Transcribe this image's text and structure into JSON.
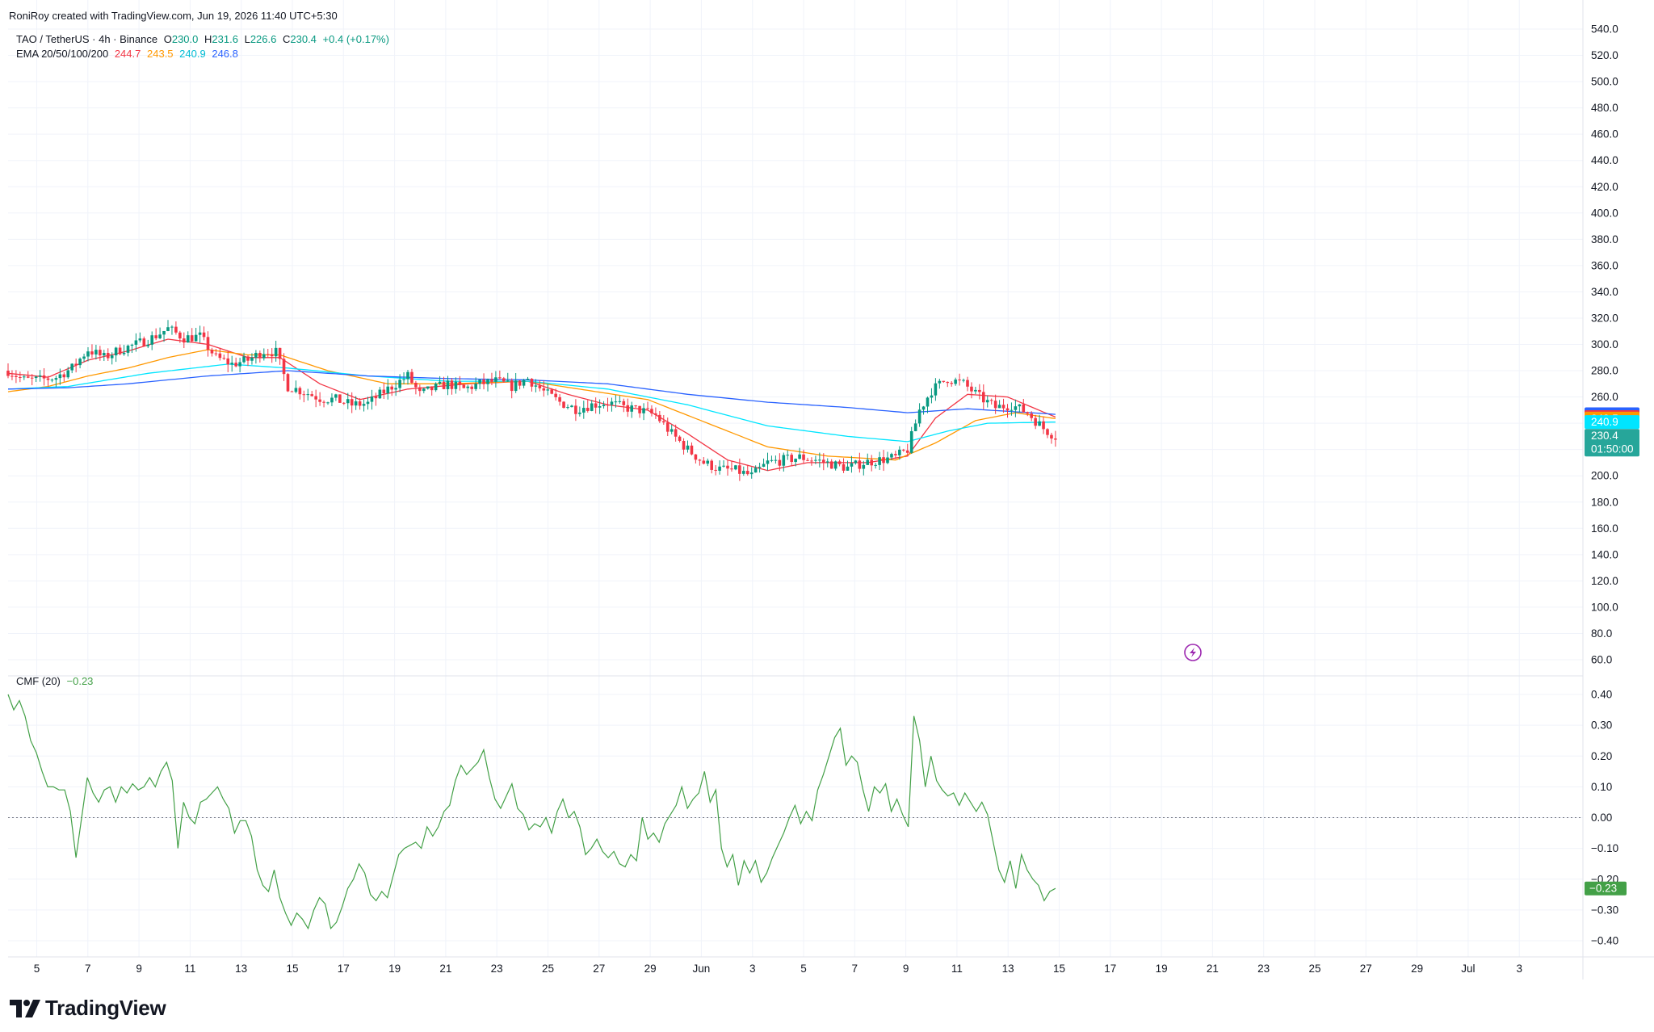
{
  "credit": "RoniRoy created with TradingView.com, Jun 19, 2026 11:40 UTC+5:30",
  "symbol_legend": {
    "name": "TAO / TetherUS · 4h · Binance",
    "open_label": "O",
    "open": "230.0",
    "high_label": "H",
    "high": "231.6",
    "low_label": "L",
    "low": "226.6",
    "close_label": "C",
    "close": "230.4",
    "change": "+0.4 (+0.17%)"
  },
  "ema_legend": {
    "name": "EMA 20/50/100/200",
    "ema20": "244.7",
    "ema50": "243.5",
    "ema100": "240.9",
    "ema200": "246.8"
  },
  "cmf_legend": {
    "name": "CMF (20)",
    "value": "−0.23"
  },
  "brand": "TradingView",
  "colors": {
    "up": "#089981",
    "down": "#f23645",
    "ema20": "#f23645",
    "ema50": "#ff9800",
    "ema100": "#00e5ff",
    "ema200": "#2962ff",
    "cmf": "#43a047",
    "grid": "#f0f3fa",
    "axis_text": "#131722"
  },
  "icons": {
    "brand_logo": "tradingview-logo-icon",
    "flash_marker": "lightning-bolt-icon"
  },
  "chart_data": [
    {
      "type": "candlestick",
      "title": "TAO / TetherUS · 4h · Binance",
      "x_ticks": [
        "5",
        "7",
        "9",
        "11",
        "13",
        "15",
        "17",
        "19",
        "21",
        "23",
        "25",
        "27",
        "29",
        "Jun",
        "3",
        "5",
        "7",
        "9",
        "11",
        "13",
        "15",
        "17",
        "19",
        "21",
        "23",
        "25",
        "27",
        "29",
        "Jul",
        "3"
      ],
      "y_ticks": [
        "540.0",
        "520.0",
        "500.0",
        "480.0",
        "460.0",
        "440.0",
        "420.0",
        "400.0",
        "380.0",
        "360.0",
        "340.0",
        "320.0",
        "300.0",
        "280.0",
        "260.0",
        "240.0",
        "220.0",
        "200.0",
        "180.0",
        "160.0",
        "140.0",
        "120.0",
        "100.0",
        "80.0",
        "60.0"
      ],
      "ylim": [
        60,
        540
      ],
      "price_labels": [
        {
          "text": "246.8",
          "value": 246.8,
          "color": "#2962ff"
        },
        {
          "text": "244.7",
          "value": 244.7,
          "color": "#f23645"
        },
        {
          "text": "243.5",
          "value": 243.5,
          "color": "#ff9800"
        },
        {
          "text": "240.9",
          "value": 240.9,
          "color": "#00e5ff"
        },
        {
          "text": "230.4",
          "value": 230.4,
          "color": "#26a69a",
          "sub": "01:50:00"
        }
      ],
      "close_anchors": [
        [
          0,
          280
        ],
        [
          4,
          273
        ],
        [
          8,
          273
        ],
        [
          12,
          275
        ],
        [
          16,
          282
        ],
        [
          20,
          296
        ],
        [
          24,
          290
        ],
        [
          28,
          296
        ],
        [
          32,
          300
        ],
        [
          36,
          305
        ],
        [
          40,
          312
        ],
        [
          44,
          305
        ],
        [
          48,
          306
        ],
        [
          52,
          290
        ],
        [
          56,
          285
        ],
        [
          60,
          288
        ],
        [
          64,
          295
        ],
        [
          67,
          294
        ],
        [
          70,
          268
        ],
        [
          74,
          264
        ],
        [
          78,
          259
        ],
        [
          82,
          258
        ],
        [
          86,
          254
        ],
        [
          90,
          255
        ],
        [
          94,
          264
        ],
        [
          98,
          272
        ],
        [
          100,
          276
        ],
        [
          103,
          262
        ],
        [
          106,
          266
        ],
        [
          110,
          270
        ],
        [
          114,
          266
        ],
        [
          118,
          270
        ],
        [
          122,
          272
        ],
        [
          126,
          268
        ],
        [
          130,
          274
        ],
        [
          134,
          264
        ],
        [
          138,
          256
        ],
        [
          142,
          251
        ],
        [
          146,
          254
        ],
        [
          150,
          256
        ],
        [
          154,
          252
        ],
        [
          158,
          250
        ],
        [
          162,
          246
        ],
        [
          166,
          232
        ],
        [
          170,
          220
        ],
        [
          174,
          210
        ],
        [
          178,
          205
        ],
        [
          182,
          204
        ],
        [
          186,
          200
        ],
        [
          190,
          210
        ],
        [
          194,
          212
        ],
        [
          198,
          214
        ],
        [
          202,
          212
        ],
        [
          206,
          209
        ],
        [
          210,
          206
        ],
        [
          214,
          210
        ],
        [
          218,
          212
        ],
        [
          222,
          214
        ],
        [
          225,
          220
        ],
        [
          228,
          250
        ],
        [
          231,
          265
        ],
        [
          235,
          274
        ],
        [
          239,
          270
        ],
        [
          243,
          260
        ],
        [
          247,
          252
        ],
        [
          251,
          254
        ],
        [
          255,
          248
        ],
        [
          259,
          236
        ],
        [
          262,
          230
        ]
      ],
      "ema_series": [
        {
          "name": "EMA 20",
          "color": "#f23645",
          "anchors": [
            [
              0,
              278
            ],
            [
              10,
              275
            ],
            [
              20,
              288
            ],
            [
              30,
              295
            ],
            [
              40,
              304
            ],
            [
              50,
              300
            ],
            [
              60,
              290
            ],
            [
              68,
              290
            ],
            [
              78,
              270
            ],
            [
              88,
              258
            ],
            [
              100,
              266
            ],
            [
              115,
              270
            ],
            [
              130,
              272
            ],
            [
              140,
              262
            ],
            [
              150,
              254
            ],
            [
              160,
              250
            ],
            [
              170,
              232
            ],
            [
              180,
              212
            ],
            [
              190,
              204
            ],
            [
              200,
              210
            ],
            [
              215,
              210
            ],
            [
              225,
              215
            ],
            [
              232,
              244
            ],
            [
              240,
              262
            ],
            [
              250,
              260
            ],
            [
              262,
              244.7
            ]
          ]
        },
        {
          "name": "EMA 50",
          "color": "#ff9800",
          "anchors": [
            [
              0,
              264
            ],
            [
              10,
              268
            ],
            [
              20,
              276
            ],
            [
              30,
              282
            ],
            [
              40,
              290
            ],
            [
              50,
              296
            ],
            [
              60,
              292
            ],
            [
              68,
              292
            ],
            [
              80,
              280
            ],
            [
              95,
              270
            ],
            [
              110,
              270
            ],
            [
              130,
              272
            ],
            [
              145,
              265
            ],
            [
              160,
              258
            ],
            [
              175,
              240
            ],
            [
              190,
              222
            ],
            [
              205,
              215
            ],
            [
              222,
              212
            ],
            [
              232,
              225
            ],
            [
              242,
              242
            ],
            [
              252,
              248
            ],
            [
              262,
              243.5
            ]
          ]
        },
        {
          "name": "EMA 100",
          "color": "#00e5ff",
          "anchors": [
            [
              0,
              266
            ],
            [
              15,
              268
            ],
            [
              35,
              278
            ],
            [
              55,
              285
            ],
            [
              70,
              282
            ],
            [
              90,
              276
            ],
            [
              110,
              272
            ],
            [
              130,
              272
            ],
            [
              150,
              266
            ],
            [
              170,
              254
            ],
            [
              190,
              238
            ],
            [
              210,
              230
            ],
            [
              225,
              226
            ],
            [
              235,
              234
            ],
            [
              245,
              240
            ],
            [
              262,
              240.9
            ]
          ]
        },
        {
          "name": "EMA 200",
          "color": "#2962ff",
          "anchors": [
            [
              0,
              266
            ],
            [
              15,
              267
            ],
            [
              30,
              270
            ],
            [
              50,
              276
            ],
            [
              70,
              280
            ],
            [
              90,
              276
            ],
            [
              110,
              274
            ],
            [
              130,
              273
            ],
            [
              150,
              270
            ],
            [
              170,
              262
            ],
            [
              190,
              256
            ],
            [
              210,
              252
            ],
            [
              225,
              248
            ],
            [
              240,
              251
            ],
            [
              262,
              246.8
            ]
          ]
        }
      ]
    },
    {
      "type": "line",
      "title": "CMF (20)",
      "y_ticks": [
        "0.40",
        "0.30",
        "0.20",
        "0.10",
        "0.00",
        "−0.10",
        "−0.20",
        "−0.30",
        "−0.40"
      ],
      "ylim": [
        -0.4,
        0.4
      ],
      "zero_line": 0.0,
      "last_label": {
        "text": "−0.23",
        "value": -0.23,
        "color": "#43a047"
      },
      "series": [
        {
          "name": "CMF (20)",
          "color": "#43a047",
          "values": [
            0.4,
            0.35,
            0.38,
            0.33,
            0.25,
            0.21,
            0.15,
            0.1,
            0.1,
            0.09,
            0.09,
            0.02,
            -0.13,
            0.0,
            0.13,
            0.08,
            0.05,
            0.09,
            0.1,
            0.05,
            0.1,
            0.08,
            0.11,
            0.09,
            0.1,
            0.13,
            0.1,
            0.15,
            0.18,
            0.12,
            -0.1,
            0.05,
            0.0,
            -0.02,
            0.05,
            0.06,
            0.08,
            0.1,
            0.06,
            0.03,
            -0.05,
            -0.01,
            -0.01,
            -0.06,
            -0.17,
            -0.22,
            -0.24,
            -0.17,
            -0.26,
            -0.31,
            -0.35,
            -0.31,
            -0.33,
            -0.36,
            -0.3,
            -0.26,
            -0.28,
            -0.36,
            -0.34,
            -0.29,
            -0.23,
            -0.2,
            -0.15,
            -0.18,
            -0.25,
            -0.27,
            -0.24,
            -0.26,
            -0.19,
            -0.12,
            -0.1,
            -0.09,
            -0.08,
            -0.1,
            -0.03,
            -0.06,
            -0.03,
            0.02,
            0.04,
            0.12,
            0.17,
            0.14,
            0.16,
            0.18,
            0.22,
            0.13,
            0.06,
            0.03,
            0.07,
            0.11,
            0.03,
            0.01,
            -0.04,
            -0.02,
            -0.03,
            0.0,
            -0.05,
            0.02,
            0.06,
            0.0,
            0.02,
            -0.03,
            -0.12,
            -0.1,
            -0.07,
            -0.11,
            -0.13,
            -0.11,
            -0.15,
            -0.16,
            -0.12,
            -0.14,
            0.0,
            -0.07,
            -0.05,
            -0.08,
            -0.02,
            0.01,
            0.04,
            0.1,
            0.03,
            0.06,
            0.08,
            0.15,
            0.05,
            0.09,
            -0.1,
            -0.16,
            -0.12,
            -0.22,
            -0.14,
            -0.18,
            -0.14,
            -0.21,
            -0.18,
            -0.13,
            -0.09,
            -0.05,
            0.0,
            0.04,
            -0.02,
            0.02,
            -0.01,
            0.09,
            0.14,
            0.2,
            0.26,
            0.29,
            0.17,
            0.2,
            0.18,
            0.09,
            0.02,
            0.1,
            0.08,
            0.11,
            0.02,
            0.06,
            0.01,
            -0.03,
            0.33,
            0.25,
            0.1,
            0.2,
            0.12,
            0.09,
            0.07,
            0.08,
            0.04,
            0.08,
            0.05,
            0.02,
            0.05,
            0.01,
            -0.08,
            -0.17,
            -0.21,
            -0.14,
            -0.23,
            -0.12,
            -0.17,
            -0.2,
            -0.22,
            -0.27,
            -0.24,
            -0.23
          ]
        }
      ]
    }
  ]
}
